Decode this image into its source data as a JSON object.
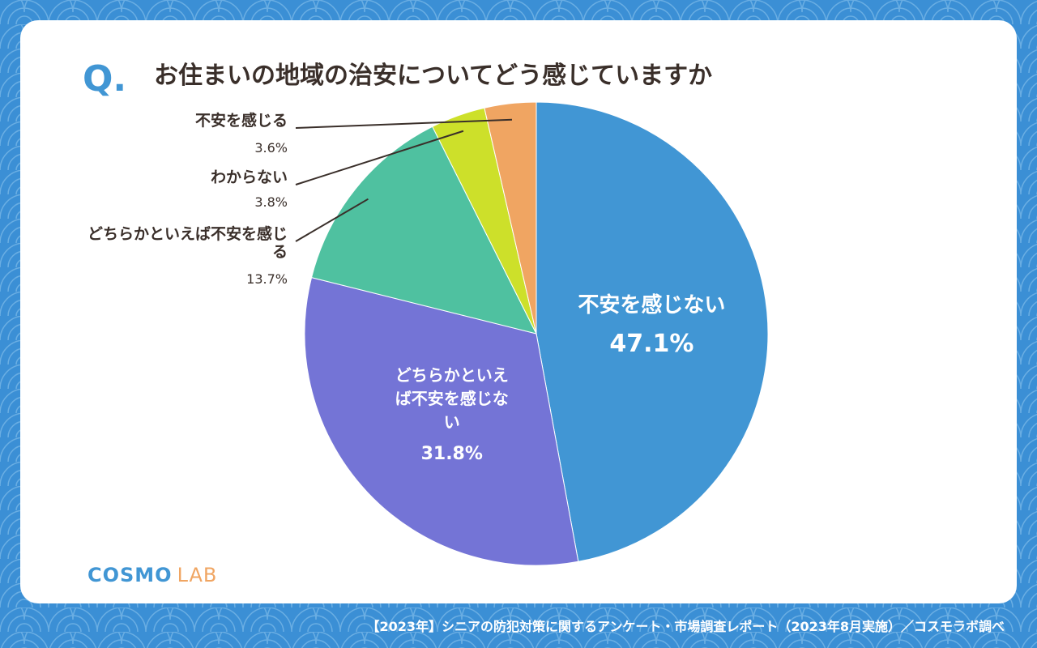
{
  "question_marker": "Q.",
  "footer": "【2023年】シニアの防犯対策に関するアンケート・市場調査レポート（2023年8月実施）／コスモラボ調べ",
  "logo": {
    "name": "COSMO",
    "suffix": "LAB"
  },
  "chart_data": {
    "type": "pie",
    "title": "お住まいの地域の治安についてどう感じていますか",
    "categories": [
      "不安を感じない",
      "どちらかといえば不安を感じない",
      "どちらかといえば不安を感じる",
      "わからない",
      "不安を感じる"
    ],
    "values": [
      47.1,
      31.8,
      13.7,
      3.8,
      3.6
    ],
    "value_labels": [
      "47.1%",
      "31.8%",
      "13.7%",
      "3.8%",
      "3.6%"
    ],
    "colors": [
      "#4196d4",
      "#7474d6",
      "#4fc1a0",
      "#cde02a",
      "#f0a562"
    ]
  }
}
